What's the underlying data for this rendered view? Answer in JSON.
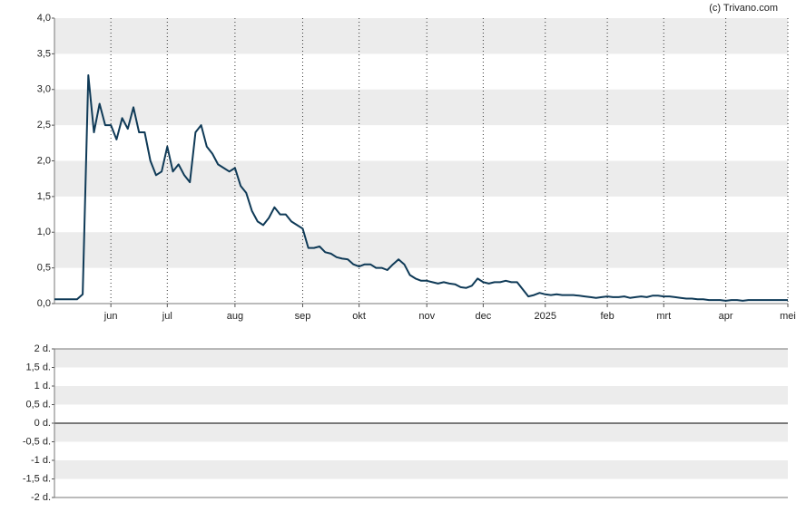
{
  "chart_data": [
    {
      "type": "line",
      "credit": "(c) Trivano.com",
      "color": "#0f3a57",
      "grid": true,
      "categories": [
        null,
        null,
        null,
        null,
        null,
        null,
        null,
        null,
        null,
        null,
        "jun",
        null,
        null,
        null,
        null,
        null,
        null,
        null,
        null,
        null,
        "jul",
        null,
        null,
        null,
        null,
        null,
        null,
        null,
        null,
        null,
        null,
        null,
        "aug",
        null,
        null,
        null,
        null,
        null,
        null,
        null,
        null,
        null,
        null,
        null,
        "sep",
        null,
        null,
        null,
        null,
        null,
        null,
        null,
        null,
        null,
        "okt",
        null,
        null,
        null,
        null,
        null,
        null,
        null,
        null,
        null,
        null,
        null,
        "nov",
        null,
        null,
        null,
        null,
        null,
        null,
        null,
        null,
        null,
        "dec",
        null,
        null,
        null,
        null,
        null,
        null,
        null,
        null,
        null,
        null,
        "2025",
        null,
        null,
        null,
        null,
        null,
        null,
        null,
        null,
        null,
        null,
        "feb",
        null,
        null,
        null,
        null,
        null,
        null,
        null,
        null,
        null,
        "mrt",
        null,
        null,
        null,
        null,
        null,
        null,
        null,
        null,
        null,
        null,
        "apr",
        null,
        null,
        null,
        null,
        null,
        null,
        null,
        null,
        null,
        null,
        "mei"
      ],
      "values": [
        0.06,
        0.06,
        0.06,
        0.06,
        0.06,
        0.13,
        3.2,
        2.4,
        2.8,
        2.5,
        2.5,
        2.3,
        2.6,
        2.45,
        2.75,
        2.4,
        2.4,
        2.0,
        1.8,
        1.85,
        2.2,
        1.85,
        1.95,
        1.8,
        1.7,
        2.4,
        2.5,
        2.2,
        2.1,
        1.95,
        1.9,
        1.85,
        1.9,
        1.65,
        1.55,
        1.3,
        1.15,
        1.1,
        1.2,
        1.35,
        1.25,
        1.25,
        1.15,
        1.1,
        1.05,
        0.78,
        0.78,
        0.8,
        0.72,
        0.7,
        0.65,
        0.63,
        0.62,
        0.55,
        0.52,
        0.55,
        0.55,
        0.5,
        0.5,
        0.47,
        0.55,
        0.62,
        0.55,
        0.4,
        0.35,
        0.32,
        0.32,
        0.3,
        0.28,
        0.3,
        0.28,
        0.27,
        0.23,
        0.22,
        0.25,
        0.35,
        0.3,
        0.28,
        0.3,
        0.3,
        0.32,
        0.3,
        0.3,
        0.2,
        0.1,
        0.12,
        0.15,
        0.13,
        0.12,
        0.13,
        0.12,
        0.12,
        0.12,
        0.11,
        0.1,
        0.09,
        0.08,
        0.09,
        0.1,
        0.09,
        0.09,
        0.1,
        0.08,
        0.09,
        0.1,
        0.09,
        0.11,
        0.11,
        0.1,
        0.1,
        0.09,
        0.08,
        0.07,
        0.07,
        0.06,
        0.06,
        0.05,
        0.05,
        0.05,
        0.04,
        0.05,
        0.05,
        0.04,
        0.05,
        0.05,
        0.05,
        0.05,
        0.05,
        0.05,
        0.05,
        0.05
      ],
      "ylim": [
        0,
        4
      ],
      "yticks": [
        {
          "value": 0,
          "label": "0,0"
        },
        {
          "value": 0.5,
          "label": "0,5"
        },
        {
          "value": 1,
          "label": "1,0"
        },
        {
          "value": 1.5,
          "label": "1,5"
        },
        {
          "value": 2,
          "label": "2,0"
        },
        {
          "value": 2.5,
          "label": "2,5"
        },
        {
          "value": 3,
          "label": "3,0"
        },
        {
          "value": 3.5,
          "label": "3,5"
        },
        {
          "value": 4,
          "label": "4,0"
        }
      ]
    },
    {
      "type": "bar",
      "grid": true,
      "ylim": [
        -2,
        2
      ],
      "yticks": [
        {
          "value": -2,
          "label": "-2 d."
        },
        {
          "value": -1.5,
          "label": "-1,5 d."
        },
        {
          "value": -1,
          "label": "-1 d."
        },
        {
          "value": -0.5,
          "label": "-0,5 d."
        },
        {
          "value": 0,
          "label": "0 d."
        },
        {
          "value": 0.5,
          "label": "0,5 d."
        },
        {
          "value": 1,
          "label": "1 d."
        },
        {
          "value": 1.5,
          "label": "1,5 d."
        },
        {
          "value": 2,
          "label": "2 d."
        }
      ]
    }
  ]
}
